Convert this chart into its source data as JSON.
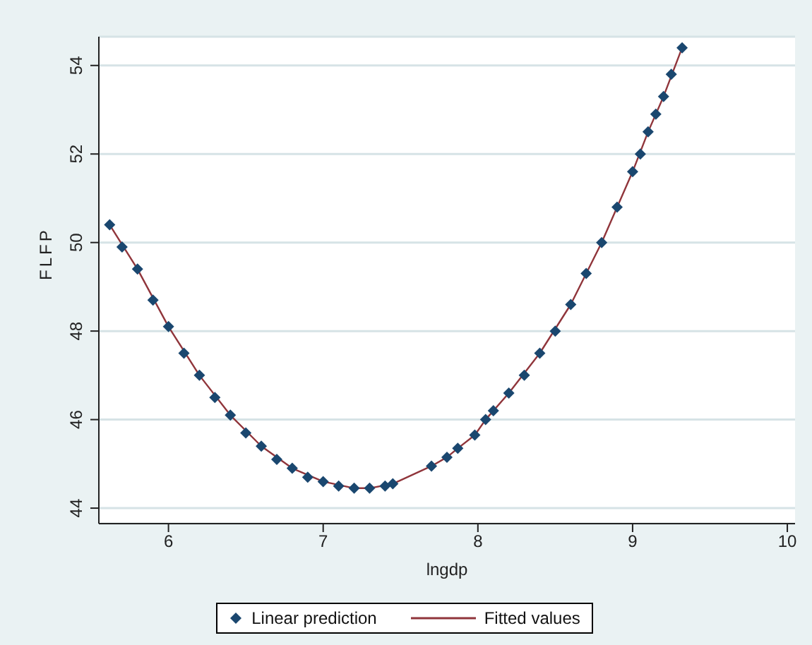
{
  "chart_data": {
    "type": "scatter",
    "xlabel": "lngdp",
    "ylabel": "FLFP",
    "xlim": [
      5.55,
      10.05
    ],
    "xticks": [
      6,
      7,
      8,
      9,
      10
    ],
    "ylim": [
      43.65,
      54.65
    ],
    "yticks": [
      44,
      46,
      48,
      50,
      52,
      54
    ],
    "grid": "y",
    "legend": "bottom",
    "series": [
      {
        "name": "Linear prediction",
        "marker": "diamond",
        "color": "#1a476f",
        "x": [
          5.62,
          5.7,
          5.8,
          5.9,
          6.0,
          6.1,
          6.2,
          6.3,
          6.4,
          6.5,
          6.6,
          6.7,
          6.8,
          6.9,
          7.0,
          7.1,
          7.2,
          7.3,
          7.4,
          7.45,
          7.7,
          7.8,
          7.87,
          7.98,
          8.05,
          8.1,
          8.2,
          8.3,
          8.4,
          8.5,
          8.6,
          8.7,
          8.8,
          8.9,
          9.0,
          9.05,
          9.1,
          9.15,
          9.2,
          9.25,
          9.32
        ],
        "values": [
          50.4,
          49.9,
          49.4,
          48.7,
          48.1,
          47.5,
          47.0,
          46.5,
          46.1,
          45.7,
          45.4,
          45.1,
          44.9,
          44.7,
          44.6,
          44.5,
          44.45,
          44.45,
          44.5,
          44.55,
          44.95,
          45.15,
          45.35,
          45.65,
          46.0,
          46.2,
          46.6,
          47.0,
          47.5,
          48.0,
          48.6,
          49.3,
          50.0,
          50.8,
          51.6,
          52.0,
          52.5,
          52.9,
          53.3,
          53.8,
          54.4
        ]
      },
      {
        "name": "Fitted values",
        "type": "line",
        "marker": "none",
        "line_style": "solid",
        "color": "#90353b",
        "x": [
          5.62,
          5.8,
          6.0,
          6.2,
          6.4,
          6.6,
          6.8,
          7.0,
          7.2,
          7.3,
          7.45,
          7.7,
          7.8,
          7.87,
          7.98,
          8.05,
          8.2,
          8.4,
          8.6,
          8.8,
          9.0,
          9.1,
          9.2,
          9.32
        ],
        "values": [
          50.4,
          49.4,
          48.1,
          47.0,
          46.1,
          45.4,
          44.9,
          44.6,
          44.45,
          44.45,
          44.55,
          44.95,
          45.15,
          45.35,
          45.65,
          46.0,
          46.6,
          47.5,
          48.6,
          50.0,
          51.6,
          52.5,
          53.3,
          54.4
        ]
      }
    ]
  }
}
